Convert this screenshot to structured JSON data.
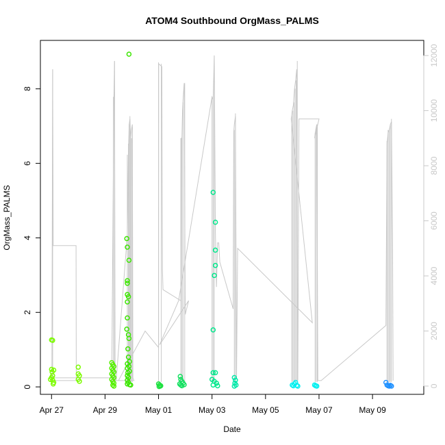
{
  "chart_data": {
    "type": "scatter",
    "title": "ATOM4 Southbound OrgMass_PALMS",
    "xlabel": "Date",
    "ylabel": "OrgMass_PALMS",
    "x_axis": {
      "type": "date",
      "range": [
        "2018-04-26T14:00",
        "2018-05-10T22:00"
      ],
      "ticks": [
        {
          "value": "2018-04-27",
          "label": "Apr 27"
        },
        {
          "value": "2018-04-29",
          "label": "Apr 29"
        },
        {
          "value": "2018-05-01",
          "label": "May 01"
        },
        {
          "value": "2018-05-03",
          "label": "May 03"
        },
        {
          "value": "2018-05-05",
          "label": "May 05"
        },
        {
          "value": "2018-05-07",
          "label": "May 07"
        },
        {
          "value": "2018-05-09",
          "label": "May 09"
        }
      ]
    },
    "y_left": {
      "range": [
        -0.2,
        9.3
      ],
      "ticks": [
        0,
        2,
        4,
        6,
        8
      ]
    },
    "y_right": {
      "range": [
        -300,
        12550
      ],
      "ticks": [
        0,
        2000,
        4000,
        6000,
        8000,
        10000,
        12000
      ],
      "color": "#c8c8c8"
    },
    "grid": false,
    "trace_color": "#c8c8c8",
    "altitude_trace": [
      [
        "2018-04-27T00:00",
        200
      ],
      [
        "2018-04-27T00:20",
        300
      ],
      [
        "2018-04-27T01:00",
        11500
      ],
      [
        "2018-04-27T01:30",
        5100
      ],
      [
        "2018-04-27T02:00",
        5100
      ],
      [
        "2018-04-27T22:00",
        5100
      ],
      [
        "2018-04-27T22:10",
        300
      ],
      [
        "2018-04-27T23:00",
        200
      ],
      [
        "2018-04-26T23:50",
        200
      ],
      [
        "2018-04-27T02:30",
        300
      ],
      [
        "2018-04-29T00:00",
        300
      ],
      [
        "2018-04-29T06:00",
        300
      ],
      [
        "2018-04-29T08:00",
        10500
      ],
      [
        "2018-04-29T08:30",
        11800
      ],
      [
        "2018-04-29T09:00",
        200
      ],
      [
        "2018-04-29T10:00",
        200
      ],
      [
        "2018-04-29T20:00",
        5500
      ],
      [
        "2018-04-29T21:00",
        8500
      ],
      [
        "2018-04-29T21:40",
        9500
      ],
      [
        "2018-04-29T22:20",
        9700
      ],
      [
        "2018-04-29T23:00",
        9000
      ],
      [
        "2018-04-29T23:40",
        9300
      ],
      [
        "2018-04-30T00:30",
        9500
      ],
      [
        "2018-04-30T01:00",
        300
      ],
      [
        "2018-04-30T02:00",
        200
      ],
      [
        "2018-04-29T06:00",
        200
      ],
      [
        "2018-04-29T12:00",
        200
      ],
      [
        "2018-04-30T12:00",
        2000
      ],
      [
        "2018-05-01T00:00",
        1400
      ],
      [
        "2018-05-01T00:10",
        11700
      ],
      [
        "2018-05-01T03:00",
        11600
      ],
      [
        "2018-05-01T03:30",
        4200
      ],
      [
        "2018-05-01T04:00",
        3500
      ],
      [
        "2018-05-01T20:00",
        3100
      ],
      [
        "2018-05-01T20:30",
        9000
      ],
      [
        "2018-05-01T21:00",
        9000
      ],
      [
        "2018-05-01T21:30",
        10000
      ],
      [
        "2018-05-01T22:00",
        10400
      ],
      [
        "2018-05-01T23:00",
        11000
      ],
      [
        "2018-05-02T00:00",
        2600
      ],
      [
        "2018-05-02T03:00",
        3100
      ],
      [
        "2018-05-01T01:00",
        1500
      ],
      [
        "2018-05-01T18:00",
        3100
      ],
      [
        "2018-05-03T00:00",
        10500
      ],
      [
        "2018-05-03T01:00",
        10400
      ],
      [
        "2018-05-03T02:00",
        12000
      ],
      [
        "2018-05-03T03:00",
        5600
      ],
      [
        "2018-05-03T04:00",
        3600
      ],
      [
        "2018-05-03T05:00",
        5200
      ],
      [
        "2018-05-03T06:00",
        5200
      ],
      [
        "2018-05-03T07:00",
        4500
      ],
      [
        "2018-05-03T19:00",
        2800
      ],
      [
        "2018-05-03T19:30",
        9200
      ],
      [
        "2018-05-03T20:00",
        9500
      ],
      [
        "2018-05-03T21:00",
        9800
      ],
      [
        "2018-05-03T22:00",
        300
      ],
      [
        "2018-05-03T23:00",
        5000
      ],
      [
        "2018-05-06T18:00",
        2300
      ],
      [
        "2018-05-05T23:00",
        9700
      ],
      [
        "2018-05-06T00:00",
        10000
      ],
      [
        "2018-05-06T01:00",
        10200
      ],
      [
        "2018-05-06T02:00",
        10800
      ],
      [
        "2018-05-06T03:00",
        11100
      ],
      [
        "2018-05-06T04:00",
        11500
      ],
      [
        "2018-05-06T05:00",
        200
      ],
      [
        "2018-05-06T06:00",
        9700
      ],
      [
        "2018-05-07T00:00",
        9700
      ],
      [
        "2018-05-06T20:00",
        9000
      ],
      [
        "2018-05-06T21:00",
        9300
      ],
      [
        "2018-05-06T22:00",
        9500
      ],
      [
        "2018-05-06T23:00",
        200
      ],
      [
        "2018-05-07T02:00",
        200
      ],
      [
        "2018-05-09T12:00",
        2200
      ],
      [
        "2018-05-09T13:00",
        8800
      ],
      [
        "2018-05-09T14:00",
        9200
      ],
      [
        "2018-05-09T15:00",
        9300
      ],
      [
        "2018-05-09T16:00",
        9500
      ],
      [
        "2018-05-09T17:00",
        9600
      ],
      [
        "2018-05-09T18:00",
        5200
      ],
      [
        "2018-05-09T18:30",
        200
      ]
    ],
    "spikes": [
      {
        "x": "2018-04-27T01:00",
        "y": 11500
      },
      {
        "x": "2018-04-29T07:30",
        "y": 10500
      },
      {
        "x": "2018-04-29T08:30",
        "y": 11800
      },
      {
        "x": "2018-04-29T20:00",
        "y": 8400
      },
      {
        "x": "2018-04-29T21:00",
        "y": 8800
      },
      {
        "x": "2018-04-29T21:40",
        "y": 9500
      },
      {
        "x": "2018-04-29T22:20",
        "y": 9800
      },
      {
        "x": "2018-04-29T23:00",
        "y": 9200
      },
      {
        "x": "2018-04-29T23:40",
        "y": 9000
      },
      {
        "x": "2018-04-30T00:30",
        "y": 9400
      },
      {
        "x": "2018-05-01T00:00",
        "y": 11750
      },
      {
        "x": "2018-05-01T02:30",
        "y": 11700
      },
      {
        "x": "2018-05-01T20:00",
        "y": 9000
      },
      {
        "x": "2018-05-01T21:00",
        "y": 9000
      },
      {
        "x": "2018-05-01T22:00",
        "y": 10300
      },
      {
        "x": "2018-05-01T23:30",
        "y": 11000
      },
      {
        "x": "2018-05-03T00:00",
        "y": 10500
      },
      {
        "x": "2018-05-03T01:00",
        "y": 10400
      },
      {
        "x": "2018-05-03T02:00",
        "y": 12000
      },
      {
        "x": "2018-05-03T20:00",
        "y": 9300
      },
      {
        "x": "2018-05-03T21:00",
        "y": 9900
      },
      {
        "x": "2018-05-05T23:30",
        "y": 9800
      },
      {
        "x": "2018-05-06T00:30",
        "y": 10000
      },
      {
        "x": "2018-05-06T01:30",
        "y": 10300
      },
      {
        "x": "2018-05-06T02:30",
        "y": 10800
      },
      {
        "x": "2018-05-06T03:30",
        "y": 11100
      },
      {
        "x": "2018-05-06T04:30",
        "y": 11800
      },
      {
        "x": "2018-05-06T20:30",
        "y": 9200
      },
      {
        "x": "2018-05-06T21:30",
        "y": 9400
      },
      {
        "x": "2018-05-06T22:30",
        "y": 9500
      },
      {
        "x": "2018-05-09T13:00",
        "y": 8900
      },
      {
        "x": "2018-05-09T14:00",
        "y": 9300
      },
      {
        "x": "2018-05-09T15:00",
        "y": 9300
      },
      {
        "x": "2018-05-09T16:00",
        "y": 9500
      },
      {
        "x": "2018-05-09T17:00",
        "y": 9700
      }
    ],
    "points": [
      {
        "x": "2018-04-27T00:00",
        "y": 1.26,
        "color": "#7cfc00"
      },
      {
        "x": "2018-04-27T01:00",
        "y": 1.25,
        "color": "#7cfc00"
      },
      {
        "x": "2018-04-27T00:00",
        "y": 0.47,
        "color": "#7cfc00"
      },
      {
        "x": "2018-04-27T00:30",
        "y": 0.4,
        "color": "#7cfc00"
      },
      {
        "x": "2018-04-27T01:00",
        "y": 0.3,
        "color": "#7cfc00"
      },
      {
        "x": "2018-04-27T02:00",
        "y": 0.45,
        "color": "#7cfc00"
      },
      {
        "x": "2018-04-27T00:00",
        "y": 0.25,
        "color": "#7cfc00"
      },
      {
        "x": "2018-04-27T01:00",
        "y": 0.18,
        "color": "#7cfc00"
      },
      {
        "x": "2018-04-27T02:00",
        "y": 0.12,
        "color": "#7cfc00"
      },
      {
        "x": "2018-04-26T23:00",
        "y": 0.2,
        "color": "#7cfc00"
      },
      {
        "x": "2018-04-27T01:30",
        "y": 0.08,
        "color": "#7cfc00"
      },
      {
        "x": "2018-04-28T00:00",
        "y": 0.53,
        "color": "#7cfc00"
      },
      {
        "x": "2018-04-28T00:00",
        "y": 0.35,
        "color": "#7cfc00"
      },
      {
        "x": "2018-04-28T01:00",
        "y": 0.3,
        "color": "#7cfc00"
      },
      {
        "x": "2018-04-28T00:00",
        "y": 0.2,
        "color": "#7cfc00"
      },
      {
        "x": "2018-04-28T01:00",
        "y": 0.15,
        "color": "#7cfc00"
      },
      {
        "x": "2018-04-29T06:00",
        "y": 0.65,
        "color": "#55f000"
      },
      {
        "x": "2018-04-29T07:00",
        "y": 0.6,
        "color": "#55f000"
      },
      {
        "x": "2018-04-29T08:00",
        "y": 0.55,
        "color": "#55f000"
      },
      {
        "x": "2018-04-29T06:00",
        "y": 0.5,
        "color": "#55f000"
      },
      {
        "x": "2018-04-29T07:00",
        "y": 0.45,
        "color": "#55f000"
      },
      {
        "x": "2018-04-29T08:00",
        "y": 0.4,
        "color": "#55f000"
      },
      {
        "x": "2018-04-29T06:00",
        "y": 0.35,
        "color": "#55f000"
      },
      {
        "x": "2018-04-29T07:00",
        "y": 0.3,
        "color": "#55f000"
      },
      {
        "x": "2018-04-29T08:00",
        "y": 0.25,
        "color": "#55f000"
      },
      {
        "x": "2018-04-29T06:00",
        "y": 0.2,
        "color": "#55f000"
      },
      {
        "x": "2018-04-29T07:00",
        "y": 0.15,
        "color": "#55f000"
      },
      {
        "x": "2018-04-29T08:00",
        "y": 0.1,
        "color": "#55f000"
      },
      {
        "x": "2018-04-29T07:00",
        "y": 0.05,
        "color": "#55f000"
      },
      {
        "x": "2018-04-29T08:00",
        "y": 0.02,
        "color": "#55f000"
      },
      {
        "x": "2018-04-29T19:30",
        "y": 3.98,
        "color": "#3ce600"
      },
      {
        "x": "2018-04-29T20:00",
        "y": 3.75,
        "color": "#3ce600"
      },
      {
        "x": "2018-04-29T21:30",
        "y": 3.4,
        "color": "#3ce600"
      },
      {
        "x": "2018-04-29T20:00",
        "y": 2.85,
        "color": "#3ce600"
      },
      {
        "x": "2018-04-29T20:00",
        "y": 2.78,
        "color": "#3ce600"
      },
      {
        "x": "2018-04-29T20:00",
        "y": 2.48,
        "color": "#3ce600"
      },
      {
        "x": "2018-04-29T21:00",
        "y": 2.42,
        "color": "#3ce600"
      },
      {
        "x": "2018-04-29T20:00",
        "y": 2.28,
        "color": "#3ce600"
      },
      {
        "x": "2018-04-29T20:00",
        "y": 1.85,
        "color": "#3ce600"
      },
      {
        "x": "2018-04-29T19:30",
        "y": 1.55,
        "color": "#3ce600"
      },
      {
        "x": "2018-04-29T21:00",
        "y": 1.4,
        "color": "#3ce600"
      },
      {
        "x": "2018-04-29T21:30",
        "y": 1.3,
        "color": "#3ce600"
      },
      {
        "x": "2018-04-29T20:30",
        "y": 1.02,
        "color": "#3ce600"
      },
      {
        "x": "2018-04-29T21:00",
        "y": 0.8,
        "color": "#3ce600"
      },
      {
        "x": "2018-04-29T22:00",
        "y": 0.68,
        "color": "#3ce600"
      },
      {
        "x": "2018-04-29T21:30",
        "y": 0.55,
        "color": "#3ce600"
      },
      {
        "x": "2018-04-29T22:00",
        "y": 0.42,
        "color": "#3ce600"
      },
      {
        "x": "2018-04-29T20:00",
        "y": 0.62,
        "color": "#3ce600"
      },
      {
        "x": "2018-04-29T20:00",
        "y": 0.5,
        "color": "#3ce600"
      },
      {
        "x": "2018-04-29T20:30",
        "y": 0.38,
        "color": "#3ce600"
      },
      {
        "x": "2018-04-29T20:00",
        "y": 0.3,
        "color": "#3ce600"
      },
      {
        "x": "2018-04-29T21:00",
        "y": 0.25,
        "color": "#3ce600"
      },
      {
        "x": "2018-04-29T20:00",
        "y": 0.18,
        "color": "#3ce600"
      },
      {
        "x": "2018-04-29T21:00",
        "y": 0.12,
        "color": "#3ce600"
      },
      {
        "x": "2018-04-29T20:00",
        "y": 0.08,
        "color": "#3ce600"
      },
      {
        "x": "2018-04-29T22:00",
        "y": 0.06,
        "color": "#3ce600"
      },
      {
        "x": "2018-04-29T23:00",
        "y": 0.05,
        "color": "#3ce600"
      },
      {
        "x": "2018-04-29T21:30",
        "y": 8.93,
        "color": "#3ce600"
      },
      {
        "x": "2018-05-01T00:00",
        "y": 0.08,
        "color": "#1ee040"
      },
      {
        "x": "2018-05-01T01:00",
        "y": 0.05,
        "color": "#1ee040"
      },
      {
        "x": "2018-05-01T02:00",
        "y": 0.03,
        "color": "#1ee040"
      },
      {
        "x": "2018-05-01T00:30",
        "y": 0.01,
        "color": "#1ee040"
      },
      {
        "x": "2018-05-01T01:30",
        "y": 0.02,
        "color": "#1ee040"
      },
      {
        "x": "2018-05-01T19:30",
        "y": 0.28,
        "color": "#14e060"
      },
      {
        "x": "2018-05-01T20:00",
        "y": 0.2,
        "color": "#14e060"
      },
      {
        "x": "2018-05-01T21:00",
        "y": 0.15,
        "color": "#14e060"
      },
      {
        "x": "2018-05-01T22:00",
        "y": 0.1,
        "color": "#14e060"
      },
      {
        "x": "2018-05-01T19:00",
        "y": 0.08,
        "color": "#14e060"
      },
      {
        "x": "2018-05-01T20:00",
        "y": 0.05,
        "color": "#14e060"
      },
      {
        "x": "2018-05-01T21:00",
        "y": 0.03,
        "color": "#14e060"
      },
      {
        "x": "2018-05-01T23:00",
        "y": 0.06,
        "color": "#14e060"
      },
      {
        "x": "2018-05-03T01:00",
        "y": 5.22,
        "color": "#00e88c"
      },
      {
        "x": "2018-05-03T03:00",
        "y": 4.42,
        "color": "#00e88c"
      },
      {
        "x": "2018-05-03T03:00",
        "y": 3.67,
        "color": "#00e88c"
      },
      {
        "x": "2018-05-03T03:00",
        "y": 3.26,
        "color": "#00e88c"
      },
      {
        "x": "2018-05-03T02:00",
        "y": 2.99,
        "color": "#00e88c"
      },
      {
        "x": "2018-05-03T01:00",
        "y": 1.53,
        "color": "#00e88c"
      },
      {
        "x": "2018-05-03T01:00",
        "y": 0.38,
        "color": "#00e88c"
      },
      {
        "x": "2018-05-03T03:00",
        "y": 0.38,
        "color": "#00e88c"
      },
      {
        "x": "2018-05-03T00:00",
        "y": 0.2,
        "color": "#00e88c"
      },
      {
        "x": "2018-05-03T02:00",
        "y": 0.15,
        "color": "#00e88c"
      },
      {
        "x": "2018-05-03T04:00",
        "y": 0.1,
        "color": "#00e88c"
      },
      {
        "x": "2018-05-03T01:00",
        "y": 0.05,
        "color": "#00e88c"
      },
      {
        "x": "2018-05-03T05:00",
        "y": 0.03,
        "color": "#00e88c"
      },
      {
        "x": "2018-05-03T20:00",
        "y": 0.25,
        "color": "#00e8a8"
      },
      {
        "x": "2018-05-03T21:00",
        "y": 0.18,
        "color": "#00e8a8"
      },
      {
        "x": "2018-05-03T20:30",
        "y": 0.1,
        "color": "#00e8a8"
      },
      {
        "x": "2018-05-03T21:30",
        "y": 0.05,
        "color": "#00e8a8"
      },
      {
        "x": "2018-05-03T20:00",
        "y": 0.02,
        "color": "#00e8a8"
      },
      {
        "x": "2018-05-06T00:00",
        "y": 0.05,
        "color": "#00f0f0"
      },
      {
        "x": "2018-05-06T01:00",
        "y": 0.03,
        "color": "#00f0f0"
      },
      {
        "x": "2018-05-06T02:00",
        "y": 0.08,
        "color": "#00f0f0"
      },
      {
        "x": "2018-05-06T03:00",
        "y": 0.12,
        "color": "#00f0f0"
      },
      {
        "x": "2018-05-06T04:00",
        "y": 0.04,
        "color": "#00f0f0"
      },
      {
        "x": "2018-05-06T05:00",
        "y": 0.02,
        "color": "#00f0f0"
      },
      {
        "x": "2018-05-06T20:00",
        "y": 0.05,
        "color": "#00f0f0"
      },
      {
        "x": "2018-05-06T21:00",
        "y": 0.03,
        "color": "#00f0f0"
      },
      {
        "x": "2018-05-06T22:00",
        "y": 0.02,
        "color": "#00f0f0"
      },
      {
        "x": "2018-05-09T12:00",
        "y": 0.12,
        "color": "#1e90ff"
      },
      {
        "x": "2018-05-09T13:00",
        "y": 0.05,
        "color": "#1e90ff"
      },
      {
        "x": "2018-05-09T14:00",
        "y": 0.03,
        "color": "#1e90ff"
      },
      {
        "x": "2018-05-09T15:00",
        "y": 0.02,
        "color": "#1e90ff"
      },
      {
        "x": "2018-05-09T16:00",
        "y": 0.04,
        "color": "#1e90ff"
      },
      {
        "x": "2018-05-09T17:00",
        "y": 0.02,
        "color": "#1e90ff"
      }
    ]
  }
}
